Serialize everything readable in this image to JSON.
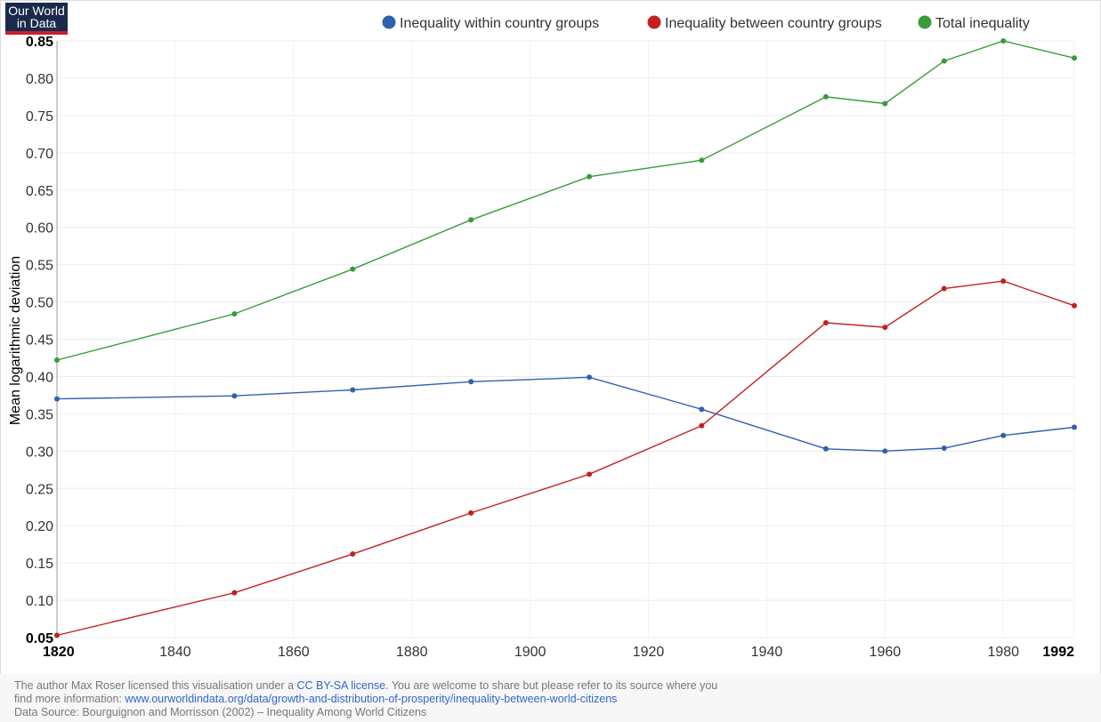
{
  "logo": {
    "line1": "Our World",
    "line2": "in Data"
  },
  "chart_data": {
    "type": "line",
    "title": "",
    "xlabel": "",
    "ylabel": "Mean logarithmic deviation",
    "x": [
      1820,
      1850,
      1870,
      1890,
      1910,
      1929,
      1950,
      1960,
      1970,
      1980,
      1992
    ],
    "xlim": [
      1820,
      1992
    ],
    "ylim": [
      0.05,
      0.85
    ],
    "xticks": [
      1820,
      1840,
      1860,
      1880,
      1900,
      1920,
      1940,
      1960,
      1980,
      1992
    ],
    "xticks_bold": [
      1820,
      1992
    ],
    "yticks": [
      0.05,
      0.1,
      0.15,
      0.2,
      0.25,
      0.3,
      0.35,
      0.4,
      0.45,
      0.5,
      0.55,
      0.6,
      0.65,
      0.7,
      0.75,
      0.8,
      0.85
    ],
    "yticks_bold": [
      0.05,
      0.85
    ],
    "grid": true,
    "legend_position": "top",
    "series": [
      {
        "name": "Inequality within country groups",
        "color": "#3060b0",
        "values": [
          0.37,
          0.374,
          0.382,
          0.393,
          0.399,
          0.356,
          0.303,
          0.3,
          0.304,
          0.321,
          0.332
        ]
      },
      {
        "name": "Inequality between country groups",
        "color": "#c42020",
        "values": [
          0.053,
          0.11,
          0.162,
          0.217,
          0.269,
          0.334,
          0.472,
          0.466,
          0.518,
          0.528,
          0.495
        ]
      },
      {
        "name": "Total inequality",
        "color": "#3a9a3a",
        "values": [
          0.422,
          0.484,
          0.544,
          0.61,
          0.668,
          0.69,
          0.775,
          0.766,
          0.823,
          0.85,
          0.827
        ]
      }
    ]
  },
  "footer": {
    "line1_prefix": "The author Max Roser licensed this visualisation under a ",
    "license_link": "CC BY-SA license",
    "line1_suffix": ". You are welcome to share but please refer to its source where you",
    "line2_prefix": "find more information:  ",
    "source_link": "www.ourworldindata.org/data/growth-and-distribution-of-prosperity/inequality-between-world-citizens",
    "line3": "Data Source: Bourguignon and Morrisson (2002) – Inequality Among World Citizens"
  }
}
